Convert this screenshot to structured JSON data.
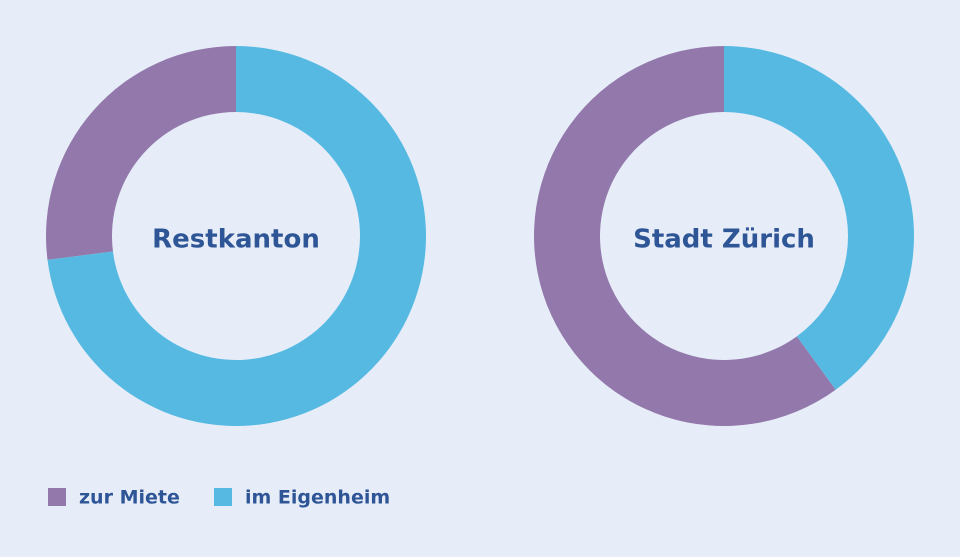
{
  "chart_data": [
    {
      "type": "donut",
      "title": "Restkanton",
      "categories": [
        "zur Miete",
        "im Eigenheim"
      ],
      "values": [
        27,
        73
      ],
      "colors": [
        "#9378ab",
        "#56b9e2"
      ]
    },
    {
      "type": "donut",
      "title": "Stadt Zürich",
      "categories": [
        "zur Miete",
        "im Eigenheim"
      ],
      "values": [
        60,
        40
      ],
      "colors": [
        "#9378ab",
        "#56b9e2"
      ]
    }
  ]
}
